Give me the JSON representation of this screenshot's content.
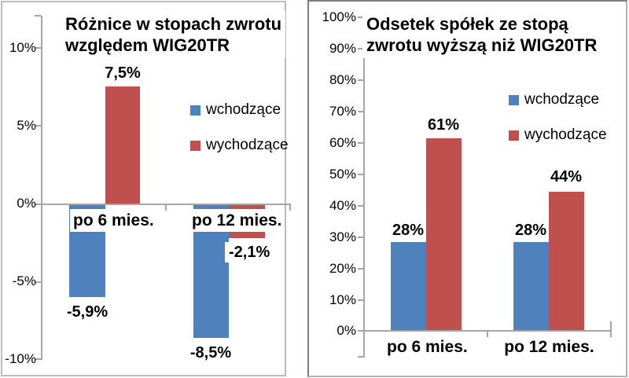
{
  "chart_data": [
    {
      "type": "bar",
      "title": "Różnice w stopach zwrotu względem WIG20TR",
      "title_lines": [
        "Różnice w stopach zwrotu",
        "względem WIG20TR"
      ],
      "categories": [
        "po 6 mies.",
        "po 12 mies."
      ],
      "series": [
        {
          "name": "wchodzące",
          "color": "#4F81BD",
          "values": [
            -5.9,
            -8.5
          ],
          "labels": [
            "-5,9%",
            "-8,5%"
          ]
        },
        {
          "name": "wychodzące",
          "color": "#C0504D",
          "values": [
            7.5,
            -2.1
          ],
          "labels": [
            "7,5%",
            "-2,1%"
          ]
        }
      ],
      "ylabel": "",
      "xlabel": "",
      "ylim": [
        -10,
        10
      ],
      "ytick_labels": [
        "10%",
        "5%",
        "0%",
        "-5%",
        "-10%"
      ],
      "grid": false,
      "legend_position": "inside-right"
    },
    {
      "type": "bar",
      "title": "Odsetek spółek ze stopą zwrotu wyższą niż WIG20TR",
      "title_lines": [
        "Odsetek spółek ze stopą",
        "zwrotu wyższą niż WIG20TR"
      ],
      "categories": [
        "po 6 mies.",
        "po 12 mies."
      ],
      "series": [
        {
          "name": "wchodzące",
          "color": "#4F81BD",
          "values": [
            28,
            28
          ],
          "labels": [
            "28%",
            "28%"
          ]
        },
        {
          "name": "wychodzące",
          "color": "#C0504D",
          "values": [
            61,
            44
          ],
          "labels": [
            "61%",
            "44%"
          ]
        }
      ],
      "ylabel": "",
      "xlabel": "",
      "ylim": [
        0,
        100
      ],
      "ytick_labels": [
        "100%",
        "90%",
        "80%",
        "70%",
        "60%",
        "50%",
        "40%",
        "30%",
        "20%",
        "10%",
        "0%"
      ],
      "grid": false,
      "legend_position": "inside-right"
    }
  ],
  "colors": {
    "series_blue": "#4F81BD",
    "series_red": "#C0504D",
    "axis_gray": "#A6A6A6",
    "panel_border_light": "#BCBCBC",
    "panel_border_dark": "#7D7D7D"
  }
}
